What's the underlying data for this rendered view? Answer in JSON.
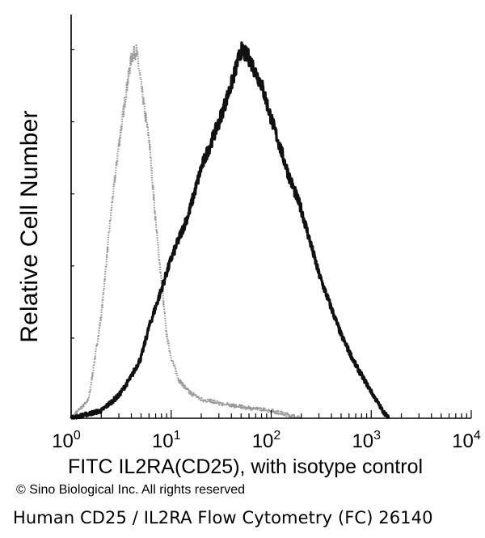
{
  "chart_data": {
    "type": "area",
    "title": "",
    "xlabel": "FITC IL2RA(CD25), with isotype control",
    "ylabel": "Relative Cell Number",
    "x_scale": "log",
    "xlim": [
      1,
      10000
    ],
    "ylim": [
      0,
      1
    ],
    "x_ticks": [
      {
        "base": "10",
        "exp": "0"
      },
      {
        "base": "10",
        "exp": "1"
      },
      {
        "base": "10",
        "exp": "2"
      },
      {
        "base": "10",
        "exp": "3"
      },
      {
        "base": "10",
        "exp": "4"
      }
    ],
    "series": [
      {
        "style": "dotted",
        "color": "#9a9a9a",
        "x": [
          1.0,
          1.5,
          2.0,
          2.5,
          3.0,
          3.5,
          4.0,
          4.5,
          5.0,
          5.5,
          6.0,
          7.0,
          8.0,
          9.0,
          10.0,
          12.0,
          15.0,
          20.0,
          30.0,
          50.0,
          100.0,
          200.0
        ],
        "y": [
          0.0,
          0.05,
          0.27,
          0.54,
          0.72,
          0.85,
          0.95,
          0.97,
          0.88,
          0.8,
          0.74,
          0.52,
          0.36,
          0.22,
          0.16,
          0.1,
          0.07,
          0.05,
          0.04,
          0.03,
          0.02,
          0.0
        ]
      },
      {
        "style": "solid",
        "color": "#111111",
        "x": [
          1.0,
          2.0,
          3.0,
          4.0,
          5.0,
          6.0,
          8.0,
          10.0,
          15.0,
          20.0,
          30.0,
          40.0,
          50.0,
          60.0,
          80.0,
          100.0,
          150.0,
          200.0,
          300.0,
          500.0,
          700.0,
          1000.0,
          1300.0,
          1500.0
        ],
        "y": [
          0.0,
          0.02,
          0.06,
          0.11,
          0.16,
          0.24,
          0.34,
          0.42,
          0.54,
          0.66,
          0.78,
          0.88,
          0.97,
          0.95,
          0.88,
          0.79,
          0.64,
          0.55,
          0.38,
          0.22,
          0.14,
          0.07,
          0.02,
          0.0
        ]
      }
    ],
    "grid": false
  },
  "copyright": "© Sino Biological Inc. All rights reserved",
  "caption": "Human CD25 / IL2RA Flow Cytometry (FC) 26140"
}
